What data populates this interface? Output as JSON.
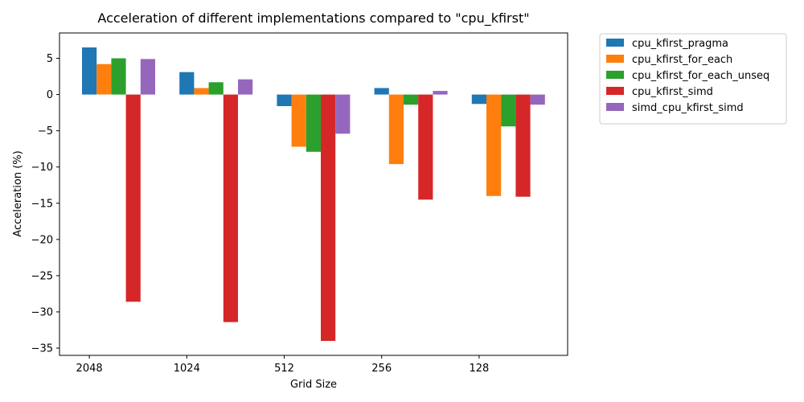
{
  "chart_data": {
    "type": "bar",
    "title": "Acceleration of different implementations compared to \"cpu_kfirst\"",
    "xlabel": "Grid Size",
    "ylabel": "Acceleration (%)",
    "categories": [
      "2048",
      "1024",
      "512",
      "256",
      "128"
    ],
    "ylim": [
      -36,
      8.5
    ],
    "yticks": [
      5,
      0,
      -5,
      -10,
      -15,
      -20,
      -25,
      -30,
      -35
    ],
    "grid": false,
    "legend_position": "outside-top-right",
    "series": [
      {
        "name": "cpu_kfirst_pragma",
        "color": "#1f77b4",
        "values": [
          6.5,
          3.1,
          -1.6,
          0.9,
          -1.3
        ]
      },
      {
        "name": "cpu_kfirst_for_each",
        "color": "#ff7f0e",
        "values": [
          4.2,
          0.9,
          -7.2,
          -9.6,
          -14.0
        ]
      },
      {
        "name": "cpu_kfirst_for_each_unseq",
        "color": "#2ca02c",
        "values": [
          5.0,
          1.7,
          -7.9,
          -1.4,
          -4.4
        ]
      },
      {
        "name": "cpu_kfirst_simd",
        "color": "#d62728",
        "values": [
          -28.6,
          -31.4,
          -34.0,
          -14.5,
          -14.1
        ]
      },
      {
        "name": "simd_cpu_kfirst_simd",
        "color": "#9467bd",
        "values": [
          4.9,
          2.1,
          -5.4,
          0.5,
          -1.4
        ]
      }
    ]
  }
}
